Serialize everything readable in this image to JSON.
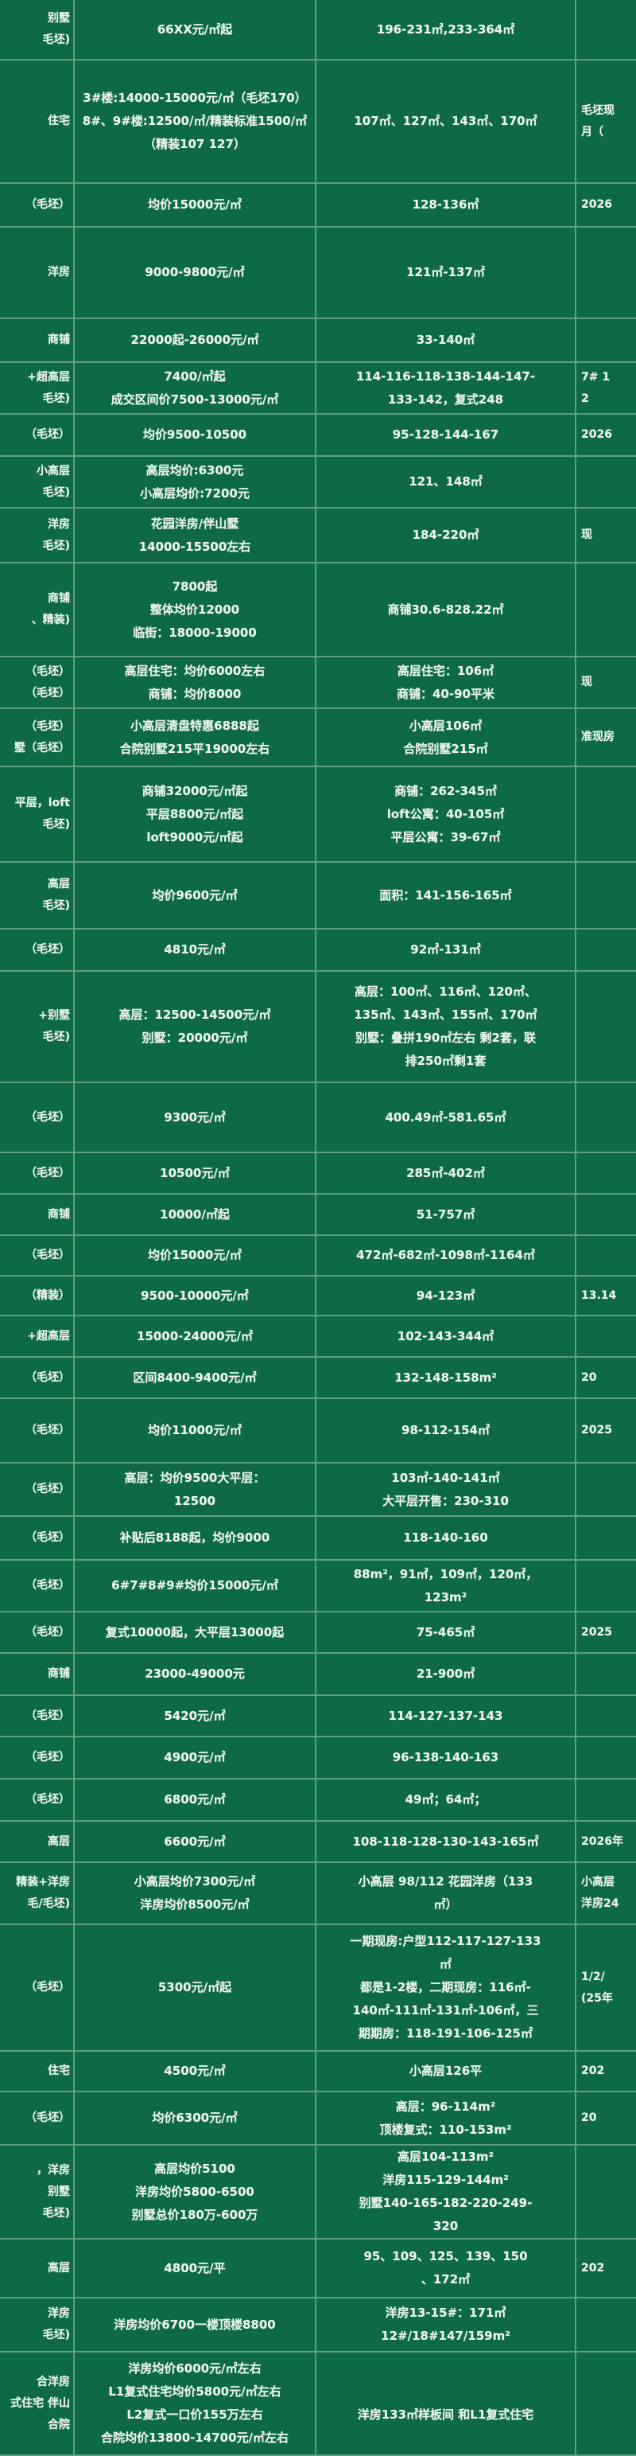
{
  "colors": {
    "background": "#0d6a45",
    "grid": "#5f9f80",
    "text": "#eef5f0"
  },
  "rows": [
    {
      "c1": "别墅\n毛坯)",
      "c2": "66XX元/㎡起",
      "c3": "196-231㎡,233-364㎡",
      "c4": ""
    },
    {
      "c1": "住宅",
      "c2": "3#楼:14000-15000元/㎡（毛坯170）\n8#、9#楼:12500/㎡/精装标准1500/㎡（精装107 127）",
      "c3": "107㎡、127㎡、143㎡、170㎡",
      "c4": "毛坯现\n月（"
    },
    {
      "c1": "（毛坯）",
      "c2": "均价15000元/㎡",
      "c3": "128-136㎡",
      "c4": "2026"
    },
    {
      "c1": "洋房",
      "c2": "9000-9800元/㎡",
      "c3": "121㎡-137㎡",
      "c4": ""
    },
    {
      "c1": "商铺",
      "c2": "22000起-26000元/㎡",
      "c3": "33-140㎡",
      "c4": ""
    },
    {
      "c1": "+超高层\n毛坯)",
      "c2": "7400/㎡起\n成交区间价7500-13000元/㎡",
      "c3": "114-116-118-138-144-147-\n133-142，复式248",
      "c4": "7# 1\n2"
    },
    {
      "c1": "（毛坯）",
      "c2": "均价9500-10500",
      "c3": "95-128-144-167",
      "c4": "2026"
    },
    {
      "c1": "小高层\n毛坯)",
      "c2": "高层均价:6300元\n小高层均价:7200元",
      "c3": "121、148㎡",
      "c4": ""
    },
    {
      "c1": "洋房\n毛坯)",
      "c2": "花园洋房/伴山墅\n14000-15500左右",
      "c3": "184-220㎡",
      "c4": "现"
    },
    {
      "c1": "商铺\n、精装)",
      "c2": "7800起\n整体均价12000\n临街：18000-19000",
      "c3": "商铺30.6-828.22㎡",
      "c4": ""
    },
    {
      "c1": "（毛坯）\n（毛坯）",
      "c2": "高层住宅：均价6000左右\n商铺：均价8000",
      "c3": "高层住宅：106㎡\n商铺：40-90平米",
      "c4": "现"
    },
    {
      "c1": "（毛坯）\n墅（毛坯）",
      "c2": "小高层清盘特惠6888起\n合院别墅215平19000左右",
      "c3": "小高层106㎡\n合院别墅215㎡",
      "c4": "准现房"
    },
    {
      "c1": "平层，loft\n毛坯)",
      "c2": "商铺32000元/㎡起\n平层8800元/㎡起\nloft9000元/㎡起",
      "c3": "商铺：262-345㎡\nloft公寓：40-105㎡\n平层公寓：39-67㎡",
      "c4": ""
    },
    {
      "c1": "高层\n毛坯)",
      "c2": "均价9600元/㎡",
      "c3": "面积：141-156-165㎡",
      "c4": ""
    },
    {
      "c1": "（毛坯）",
      "c2": "4810元/㎡",
      "c3": "92㎡-131㎡",
      "c4": ""
    },
    {
      "c1": "+别墅\n毛坯)",
      "c2": "高层：12500-14500元/㎡\n别墅：20000元/㎡",
      "c3": "高层：100㎡、116㎡、120㎡、\n135㎡、143㎡、155㎡、170㎡\n别墅：叠拼190㎡左右 剩2套，联\n排250㎡剩1套",
      "c4": ""
    },
    {
      "c1": "（毛坯）",
      "c2": "9300元/㎡",
      "c3": "400.49㎡-581.65㎡",
      "c4": ""
    },
    {
      "c1": "（毛坯）",
      "c2": "10500元/㎡",
      "c3": "285㎡-402㎡",
      "c4": ""
    },
    {
      "c1": "商铺",
      "c2": "10000/㎡起",
      "c3": "51-757㎡",
      "c4": ""
    },
    {
      "c1": "（毛坯）",
      "c2": "均价15000元/㎡",
      "c3": "472㎡-682㎡-1098㎡-1164㎡",
      "c4": ""
    },
    {
      "c1": "（精装）",
      "c2": "9500-10000元/㎡",
      "c3": "94-123㎡",
      "c4": "13.14"
    },
    {
      "c1": "+超高层",
      "c2": "15000-24000元/㎡",
      "c3": "102-143-344㎡",
      "c4": ""
    },
    {
      "c1": "（毛坯）",
      "c2": "区间8400-9400元/㎡",
      "c3": "132-148-158m²",
      "c4": "20"
    },
    {
      "c1": "（毛坯）",
      "c2": "均价11000元/㎡",
      "c3": "98-112-154㎡",
      "c4": "2025"
    },
    {
      "c1": "（毛坯）",
      "c2": "高层：均价9500大平层：\n12500",
      "c3": "103㎡-140-141㎡\n大平层开售：230-310",
      "c4": ""
    },
    {
      "c1": "（毛坯）",
      "c2": "补贴后8188起，均价9000",
      "c3": "118-140-160",
      "c4": ""
    },
    {
      "c1": "（毛坯）",
      "c2": "6#7#8#9#均价15000元/㎡",
      "c3": "88m²，91㎡，109㎡，120㎡，\n123m²",
      "c4": ""
    },
    {
      "c1": "（毛坯）",
      "c2": "复式10000起，大平层13000起",
      "c3": "75-465㎡",
      "c4": "2025"
    },
    {
      "c1": "商铺",
      "c2": "23000-49000元",
      "c3": "21-900㎡",
      "c4": ""
    },
    {
      "c1": "（毛坯）",
      "c2": "5420元/㎡",
      "c3": "114-127-137-143",
      "c4": ""
    },
    {
      "c1": "（毛坯）",
      "c2": "4900元/㎡",
      "c3": "96-138-140-163",
      "c4": ""
    },
    {
      "c1": "（毛坯）",
      "c2": "6800元/㎡",
      "c3": "49㎡；64㎡；",
      "c4": ""
    },
    {
      "c1": "高层",
      "c2": "6600元/㎡",
      "c3": "108-118-128-130-143-165㎡",
      "c4": "2026年"
    },
    {
      "c1": "精装+洋房\n毛/毛坯)",
      "c2": "小高层均价7300元/㎡\n洋房均价8500元/㎡",
      "c3": "小高层 98/112 花园洋房（133\n㎡）",
      "c4": "小高层\n洋房24"
    },
    {
      "c1": "（毛坯）",
      "c2": "5300元/㎡起",
      "c3": "一期现房:户型112-117-127-133\n㎡\n都是1-2楼，二期现房：116㎡-\n140㎡-111㎡-131㎡-106㎡，三\n期期房：118-191-106-125㎡",
      "c4": "1/2/\n(25年"
    },
    {
      "c1": "住宅",
      "c2": "4500元/㎡",
      "c3": "小高层126平",
      "c4": "202"
    },
    {
      "c1": "（毛坯）",
      "c2": "均价6300元/㎡",
      "c3": "高层：96-114m²\n顶楼复式：110-153m²",
      "c4": "20"
    },
    {
      "c1": "，洋房\n别墅\n毛坯)",
      "c2": "高层均价5100\n洋房均价5800-6500\n别墅总价180万-600万",
      "c3": "高层104-113m²\n洋房115-129-144m²\n别墅140-165-182-220-249-\n320",
      "c4": ""
    },
    {
      "c1": "高层",
      "c2": "4800元/平",
      "c3": "95、109、125、139、150\n、172㎡",
      "c4": "202"
    },
    {
      "c1": "洋房\n毛坯)",
      "c2": "洋房均价6700一楼顶楼8800",
      "c3": "洋房13-15#：171㎡\n12#/18#147/159m²",
      "c4": ""
    },
    {
      "c1": "合洋房\n式住宅 伴山\n合院",
      "c2": "洋房均价6000元/㎡左右\nL1复式住宅均价5800元/㎡左右\nL2复式一口价155万左右\n合院均价13800-14700元/㎡左右",
      "c3": "\n洋房133㎡样板间 和L1复式住宅",
      "c4": ""
    }
  ]
}
